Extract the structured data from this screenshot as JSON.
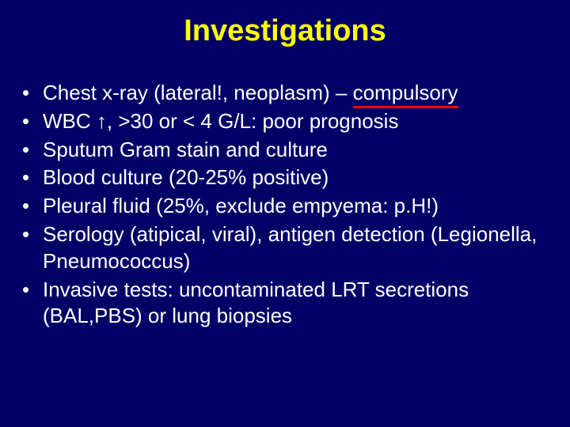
{
  "slide": {
    "title": "Investigations",
    "background_color": "#000066",
    "title_color": "#ffff00",
    "text_color": "#ffffff",
    "underline_color": "#ff0000",
    "title_fontsize": 38,
    "body_fontsize": 26,
    "bullets": [
      {
        "text_pre": "Chest x-ray (lateral!, neoplasm) – ",
        "text_underlined": "compulsory",
        "text_post": "",
        "has_underline": true
      },
      {
        "text_pre": "WBC ↑, >30 or < 4 G/L: poor prognosis",
        "text_underlined": "",
        "text_post": "",
        "has_underline": false
      },
      {
        "text_pre": "Sputum Gram stain and culture",
        "text_underlined": "",
        "text_post": "",
        "has_underline": false
      },
      {
        "text_pre": "Blood culture (20-25% positive)",
        "text_underlined": "",
        "text_post": "",
        "has_underline": false
      },
      {
        "text_pre": "Pleural fluid (25%, exclude empyema: p.H!)",
        "text_underlined": "",
        "text_post": "",
        "has_underline": false
      },
      {
        "text_pre": "Serology (atipical, viral), antigen detection (Legionella, Pneumococcus)",
        "text_underlined": "",
        "text_post": "",
        "has_underline": false
      },
      {
        "text_pre": "Invasive tests: uncontaminated LRT secretions (BAL,PBS) or lung biopsies",
        "text_underlined": "",
        "text_post": "",
        "has_underline": false
      }
    ]
  }
}
